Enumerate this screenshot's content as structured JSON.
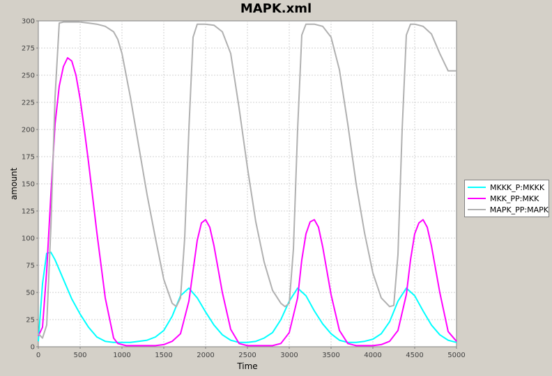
{
  "window": {
    "title": "MAPK.xml"
  },
  "chart_data": {
    "type": "line",
    "title": "MAPK.xml",
    "xlabel": "Time",
    "ylabel": "amount",
    "xlim": [
      0,
      5000
    ],
    "ylim": [
      0,
      300
    ],
    "xticks": [
      0,
      500,
      1000,
      1500,
      2000,
      2500,
      3000,
      3500,
      4000,
      4500,
      5000
    ],
    "yticks": [
      0,
      25,
      50,
      75,
      100,
      125,
      150,
      175,
      200,
      225,
      250,
      275,
      300
    ],
    "grid": true,
    "legend_position": "right",
    "series": [
      {
        "name": "MKKK_P:MKKK",
        "color": "#00ffff",
        "x": [
          0,
          50,
          100,
          150,
          200,
          300,
          400,
          500,
          600,
          700,
          800,
          900,
          1000,
          1100,
          1200,
          1300,
          1400,
          1500,
          1600,
          1700,
          1800,
          1900,
          2000,
          2100,
          2200,
          2300,
          2400,
          2500,
          2600,
          2700,
          2800,
          2900,
          3000,
          3100,
          3200,
          3300,
          3400,
          3500,
          3600,
          3700,
          3800,
          3900,
          4000,
          4100,
          4200,
          4300,
          4400,
          4500,
          4600,
          4700,
          4800,
          4900,
          5000
        ],
        "y": [
          5,
          58,
          86,
          87,
          80,
          62,
          44,
          30,
          18,
          9,
          5,
          4,
          4,
          4,
          5,
          6,
          9,
          15,
          28,
          47,
          54,
          45,
          32,
          20,
          11,
          6,
          4,
          4,
          5,
          8,
          13,
          25,
          42,
          54,
          47,
          33,
          21,
          12,
          6,
          4,
          4,
          5,
          7,
          12,
          23,
          42,
          54,
          47,
          33,
          20,
          11,
          6,
          4
        ]
      },
      {
        "name": "MKK_PP:MKK",
        "color": "#ff00ff",
        "x": [
          0,
          50,
          100,
          150,
          200,
          250,
          300,
          350,
          400,
          450,
          500,
          550,
          600,
          700,
          800,
          900,
          950,
          1000,
          1050,
          1100,
          1200,
          1300,
          1400,
          1500,
          1600,
          1700,
          1800,
          1850,
          1900,
          1950,
          2000,
          2050,
          2100,
          2200,
          2300,
          2400,
          2500,
          2600,
          2700,
          2800,
          2900,
          3000,
          3100,
          3150,
          3200,
          3250,
          3300,
          3350,
          3400,
          3500,
          3600,
          3700,
          3800,
          3900,
          4000,
          4100,
          4200,
          4300,
          4400,
          4450,
          4500,
          4550,
          4600,
          4650,
          4700,
          4800,
          4900,
          5000
        ],
        "y": [
          10,
          18,
          70,
          140,
          205,
          240,
          258,
          266,
          263,
          250,
          228,
          200,
          170,
          105,
          45,
          8,
          3,
          2,
          1,
          1,
          1,
          1,
          1,
          2,
          5,
          12,
          42,
          70,
          98,
          114,
          117,
          110,
          93,
          50,
          16,
          3,
          1,
          1,
          1,
          1,
          3,
          13,
          45,
          80,
          104,
          115,
          117,
          110,
          92,
          48,
          15,
          3,
          1,
          1,
          1,
          2,
          5,
          15,
          48,
          80,
          104,
          114,
          117,
          110,
          93,
          50,
          14,
          5
        ]
      },
      {
        "name": "MAPK_PP:MAPK",
        "color": "#b0b0b0",
        "x": [
          0,
          50,
          100,
          150,
          200,
          250,
          300,
          400,
          500,
          600,
          700,
          800,
          900,
          950,
          1000,
          1100,
          1200,
          1300,
          1400,
          1500,
          1600,
          1650,
          1700,
          1750,
          1800,
          1850,
          1900,
          1950,
          2000,
          2100,
          2200,
          2300,
          2400,
          2500,
          2600,
          2700,
          2800,
          2900,
          2950,
          3000,
          3050,
          3100,
          3150,
          3200,
          3250,
          3300,
          3400,
          3500,
          3600,
          3700,
          3800,
          3900,
          4000,
          4100,
          4200,
          4250,
          4300,
          4350,
          4400,
          4450,
          4500,
          4550,
          4600,
          4700,
          4800,
          4900,
          5000
        ],
        "y": [
          12,
          8,
          20,
          110,
          230,
          298,
          299,
          299,
          299,
          298,
          297,
          295,
          290,
          283,
          270,
          230,
          185,
          140,
          100,
          62,
          40,
          37,
          45,
          100,
          200,
          285,
          297,
          297,
          297,
          296,
          290,
          270,
          220,
          165,
          115,
          78,
          52,
          40,
          37,
          40,
          90,
          200,
          287,
          297,
          297,
          297,
          295,
          285,
          255,
          205,
          150,
          105,
          68,
          45,
          37,
          38,
          85,
          200,
          287,
          297,
          297,
          296,
          295,
          288,
          270,
          254,
          254
        ]
      }
    ]
  }
}
